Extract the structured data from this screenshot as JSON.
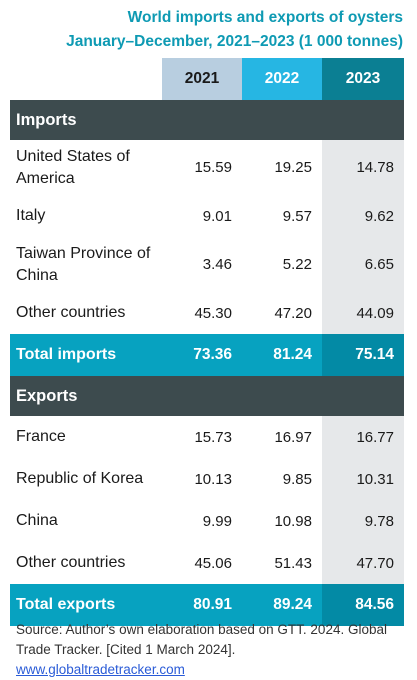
{
  "title": {
    "line1": "World imports and exports of oysters",
    "line2": "January–December, 2021–2023 (1 000 tonnes)"
  },
  "columns": [
    "2021",
    "2022",
    "2023"
  ],
  "colors": {
    "col2021": "#b8cee0",
    "col2022": "#26b6e3",
    "col2023": "#0b7f93",
    "section": "#3d4b4e",
    "total": "#07a2c0"
  },
  "imports": {
    "heading": "Imports",
    "rows": [
      {
        "label": "United States of America",
        "v": [
          "15.59",
          "19.25",
          "14.78"
        ]
      },
      {
        "label": "Italy",
        "v": [
          "9.01",
          "9.57",
          "9.62"
        ]
      },
      {
        "label": "Taiwan Province of China",
        "v": [
          "3.46",
          "5.22",
          "6.65"
        ]
      },
      {
        "label": "Other countries",
        "v": [
          "45.30",
          "47.20",
          "44.09"
        ]
      }
    ],
    "total": {
      "label": "Total imports",
      "v": [
        "73.36",
        "81.24",
        "75.14"
      ]
    }
  },
  "exports": {
    "heading": "Exports",
    "rows": [
      {
        "label": "France",
        "v": [
          "15.73",
          "16.97",
          "16.77"
        ]
      },
      {
        "label": "Republic of Korea",
        "v": [
          "10.13",
          "9.85",
          "10.31"
        ]
      },
      {
        "label": "China",
        "v": [
          "9.99",
          "10.98",
          "9.78"
        ]
      },
      {
        "label": "Other countries",
        "v": [
          "45.06",
          "51.43",
          "47.70"
        ]
      }
    ],
    "total": {
      "label": "Total exports",
      "v": [
        "80.91",
        "89.24",
        "84.56"
      ]
    }
  },
  "source": {
    "text": "Source: Author’s own elaboration based on GTT. 2024. Global Trade Tracker. [Cited 1 March 2024]. ",
    "link": "www.globaltradetracker.com"
  }
}
